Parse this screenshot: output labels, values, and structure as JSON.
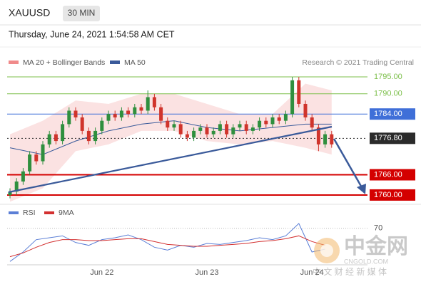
{
  "header": {
    "symbol": "XAUUSD",
    "timeframe": "30 MIN",
    "timestamp": "Thursday, June 24, 2021 1:54:58 AM CET",
    "credit": "Research © 2021 Trading Central"
  },
  "chart_data": {
    "type": "candlestick",
    "categories": [
      null,
      null,
      null,
      null,
      null,
      null,
      null,
      null,
      null,
      null,
      null,
      null,
      null,
      null,
      "Jun 22",
      null,
      null,
      null,
      null,
      null,
      null,
      null,
      null,
      null,
      null,
      null,
      null,
      null,
      null,
      null,
      "Jun 23",
      null,
      null,
      null,
      null,
      null,
      null,
      null,
      null,
      null,
      null,
      null,
      null,
      null,
      null,
      null,
      "Jun 24",
      null,
      null,
      null
    ],
    "open": [
      1760,
      1761,
      1764,
      1767,
      1772,
      1770,
      1775,
      1778,
      1776,
      1781,
      1785,
      1783,
      1779,
      1776,
      1779,
      1782,
      1784,
      1783,
      1785,
      1784,
      1786,
      1785,
      1789,
      1786,
      1782,
      1780,
      1781,
      1778,
      1777,
      1779,
      1780,
      1778,
      1779,
      1781,
      1778,
      1780,
      1781,
      1779,
      1780,
      1782,
      1781,
      1783,
      1782,
      1784,
      1794,
      1787,
      1783,
      1780,
      1775,
      1778
    ],
    "high": [
      1762,
      1765,
      1768,
      1773,
      1773,
      1776,
      1779,
      1779,
      1782,
      1786,
      1786,
      1784,
      1780,
      1780,
      1783,
      1785,
      1785,
      1786,
      1786,
      1787,
      1787,
      1791,
      1790,
      1787,
      1783,
      1782,
      1782,
      1779,
      1780,
      1781,
      1781,
      1780,
      1782,
      1782,
      1781,
      1782,
      1782,
      1781,
      1783,
      1783,
      1784,
      1784,
      1785,
      1795,
      1795,
      1788,
      1784,
      1781,
      1779,
      1779
    ],
    "low": [
      1759,
      1760,
      1763,
      1766,
      1769,
      1769,
      1774,
      1775,
      1775,
      1780,
      1782,
      1778,
      1775,
      1775,
      1778,
      1781,
      1782,
      1782,
      1783,
      1783,
      1784,
      1784,
      1785,
      1781,
      1779,
      1779,
      1777,
      1776,
      1776,
      1778,
      1777,
      1777,
      1778,
      1777,
      1777,
      1779,
      1778,
      1778,
      1779,
      1780,
      1780,
      1781,
      1781,
      1783,
      1786,
      1782,
      1779,
      1773,
      1774,
      1774
    ],
    "close": [
      1761,
      1764,
      1767,
      1772,
      1770,
      1775,
      1778,
      1776,
      1781,
      1785,
      1783,
      1779,
      1776,
      1779,
      1782,
      1784,
      1783,
      1785,
      1784,
      1786,
      1785,
      1789,
      1786,
      1782,
      1780,
      1781,
      1778,
      1777,
      1779,
      1780,
      1778,
      1779,
      1781,
      1778,
      1780,
      1781,
      1779,
      1780,
      1782,
      1781,
      1783,
      1782,
      1784,
      1794,
      1787,
      1783,
      1780,
      1775,
      1778,
      1775
    ],
    "up_color": "#2f8f3e",
    "down_color": "#d0342c",
    "bands": {
      "name": "MA 20 + Bollinger Bands",
      "color": "#f08a8a",
      "x": [
        0,
        5,
        10,
        15,
        20,
        25,
        30,
        35,
        40,
        45,
        49
      ],
      "upper": [
        1778,
        1782,
        1788,
        1787,
        1790,
        1790,
        1787,
        1784,
        1784,
        1793,
        1791
      ],
      "lower": [
        1758,
        1762,
        1773,
        1775,
        1779,
        1779,
        1776,
        1775,
        1776,
        1774,
        1772
      ]
    },
    "ma50": {
      "name": "MA 50",
      "color": "#3a5a9a",
      "x": [
        0,
        5,
        10,
        15,
        20,
        25,
        30,
        35,
        40,
        45,
        49
      ],
      "values": [
        1774,
        1772,
        1776,
        1779,
        1781,
        1782,
        1780,
        1779,
        1780,
        1781,
        1781
      ]
    },
    "levels": [
      {
        "value": 1795,
        "label": "1795.00",
        "color": "#7cbf4a",
        "style": "plain"
      },
      {
        "value": 1790,
        "label": "1790.00",
        "color": "#7cbf4a",
        "style": "plain"
      },
      {
        "value": 1784,
        "label": "1784.00",
        "color": "#3f6fd8",
        "style": "box"
      },
      {
        "value": 1776.8,
        "label": "1776.80",
        "color": "#2b2b2b",
        "style": "dotted"
      },
      {
        "value": 1766,
        "label": "1766.00",
        "color": "#d40000",
        "style": "box"
      },
      {
        "value": 1760,
        "label": "1760.00",
        "color": "#d40000",
        "style": "box"
      }
    ],
    "ylim": [
      1758.3,
      1796.7
    ]
  },
  "rsi_panel": {
    "type": "line",
    "series": [
      {
        "name": "RSI",
        "color": "#5b7fd6",
        "x": [
          0,
          2,
          4,
          6,
          8,
          10,
          12,
          14,
          16,
          18,
          20,
          22,
          24,
          26,
          28,
          30,
          32,
          34,
          36,
          38,
          40,
          42,
          44,
          46,
          48
        ],
        "values": [
          35,
          45,
          58,
          60,
          62,
          55,
          52,
          58,
          60,
          63,
          58,
          50,
          47,
          52,
          50,
          54,
          53,
          55,
          57,
          60,
          58,
          62,
          75,
          45,
          48
        ]
      },
      {
        "name": "9MA",
        "color": "#d33030",
        "x": [
          0,
          2,
          4,
          6,
          8,
          10,
          12,
          14,
          16,
          18,
          20,
          22,
          24,
          26,
          28,
          30,
          32,
          34,
          36,
          38,
          40,
          42,
          44,
          46,
          48
        ],
        "values": [
          40,
          44,
          50,
          55,
          58,
          58,
          57,
          57,
          58,
          59,
          59,
          56,
          53,
          52,
          51,
          51,
          52,
          53,
          54,
          56,
          57,
          59,
          62,
          56,
          52
        ]
      }
    ],
    "ylim": [
      30,
      75
    ],
    "yticks": [
      70
    ]
  },
  "watermark": {
    "brand": "中金网",
    "site": "CNGOLD.COM",
    "tagline": "中 文 财 经 新 媒 体"
  }
}
